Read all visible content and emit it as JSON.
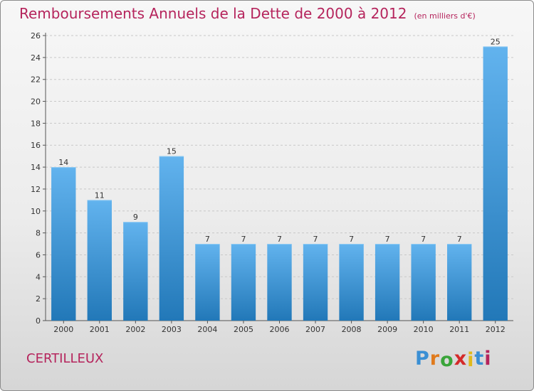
{
  "title": "Remboursements Annuels de la Dette de 2000 à 2012",
  "subtitle": "(en milliers d'€)",
  "commune": "CERTILLEUX",
  "logo": {
    "text": "Proxiti",
    "letter_colors": [
      "#3a8fd4",
      "#e07a1c",
      "#3aa53a",
      "#d42a2a",
      "#e0b91c",
      "#3a8fd4",
      "#b5245c"
    ]
  },
  "colors": {
    "bar_top": "#62b3ee",
    "bar_bottom": "#2278b8",
    "title": "#b5245c",
    "grid": "#c8c8c8"
  },
  "chart_data": {
    "type": "bar",
    "categories": [
      "2000",
      "2001",
      "2002",
      "2003",
      "2004",
      "2005",
      "2006",
      "2007",
      "2008",
      "2009",
      "2010",
      "2011",
      "2012"
    ],
    "values": [
      14,
      11,
      9,
      15,
      7,
      7,
      7,
      7,
      7,
      7,
      7,
      7,
      25
    ],
    "data_labels": [
      "14",
      "11",
      "9",
      "15",
      "7",
      "7",
      "7",
      "7",
      "7",
      "7",
      "7",
      "7",
      "25"
    ],
    "title": "Remboursements Annuels de la Dette de 2000 à 2012",
    "ylim": [
      0,
      26
    ],
    "yticks": [
      "0",
      "2",
      "4",
      "6",
      "8",
      "10",
      "12",
      "14",
      "16",
      "18",
      "20",
      "22",
      "24",
      "26"
    ],
    "grid": "horizontal dashed"
  }
}
